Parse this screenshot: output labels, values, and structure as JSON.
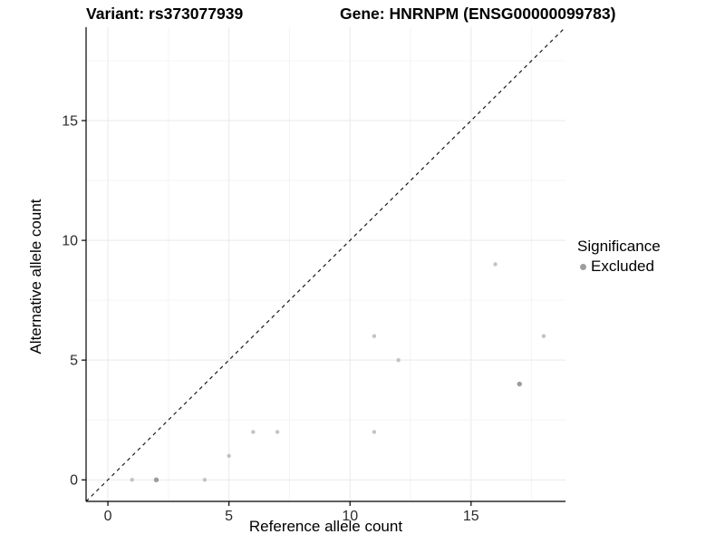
{
  "header": {
    "variant_title": "Variant: rs373077939",
    "gene_title": "Gene: HNRNPM (ENSG00000099783)"
  },
  "chart_data": {
    "type": "scatter",
    "xlabel": "Reference allele count",
    "ylabel": "Alternative allele count",
    "xlim": [
      -0.9,
      18.9
    ],
    "ylim": [
      -0.9,
      18.9
    ],
    "x_ticks": [
      0,
      5,
      10,
      15
    ],
    "y_ticks": [
      0,
      5,
      10,
      15
    ],
    "x_minor_ticks": [
      2.5,
      7.5,
      12.5,
      17.5
    ],
    "y_minor_ticks": [
      2.5,
      7.5,
      12.5,
      17.5
    ],
    "grid": true,
    "identity_line": {
      "type": "abline",
      "slope": 1,
      "intercept": 0,
      "style": "dashed",
      "color": "#1a1a1a"
    },
    "points": [
      {
        "x": 1,
        "y": 0,
        "overlap": false
      },
      {
        "x": 2,
        "y": 0,
        "overlap": true
      },
      {
        "x": 4,
        "y": 0,
        "overlap": false
      },
      {
        "x": 5,
        "y": 1,
        "overlap": false
      },
      {
        "x": 6,
        "y": 2,
        "overlap": false
      },
      {
        "x": 7,
        "y": 2,
        "overlap": false
      },
      {
        "x": 11,
        "y": 2,
        "overlap": false
      },
      {
        "x": 11,
        "y": 6,
        "overlap": false
      },
      {
        "x": 12,
        "y": 5,
        "overlap": false
      },
      {
        "x": 16,
        "y": 9,
        "overlap": false
      },
      {
        "x": 17,
        "y": 4,
        "overlap": true
      },
      {
        "x": 18,
        "y": 6,
        "overlap": false
      }
    ],
    "legend": {
      "title": "Significance",
      "position": "right",
      "items": [
        {
          "label": "Excluded",
          "marker": "circle",
          "color": "#9e9e9e"
        }
      ]
    },
    "colors": {
      "point": "#c3c3c3",
      "point_overlap": "#9c9c9c",
      "grid_major": "#e9e9e9",
      "grid_minor": "#f4f4f4",
      "axis_line": "#000000",
      "tick_label": "#2b2b2b"
    }
  }
}
